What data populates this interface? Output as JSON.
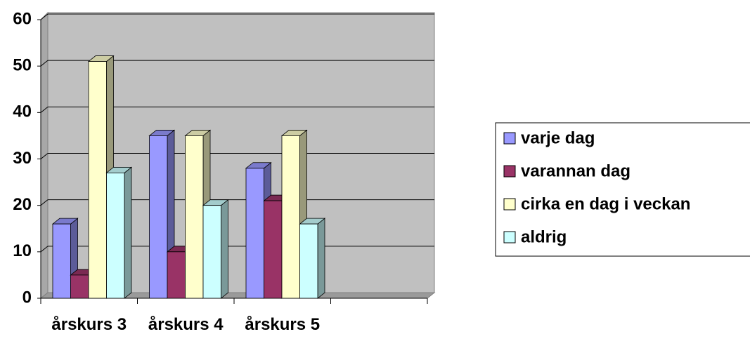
{
  "chart_data": {
    "type": "bar3d",
    "categories": [
      "årskurs 3",
      "årskurs 4",
      "årskurs 5",
      null
    ],
    "series": [
      {
        "name": "varje dag",
        "color": "#9999ff",
        "values": [
          16,
          35,
          28,
          null
        ]
      },
      {
        "name": "varannan dag",
        "color": "#993366",
        "values": [
          5,
          10,
          21,
          null
        ]
      },
      {
        "name": "cirka en dag i veckan",
        "color": "#ffffcc",
        "values": [
          51,
          35,
          35,
          null
        ]
      },
      {
        "name": "aldrig",
        "color": "#ccffff",
        "values": [
          27,
          20,
          16,
          null
        ]
      }
    ],
    "ylim": [
      0,
      60
    ],
    "yticks": [
      0,
      10,
      20,
      30,
      40,
      50,
      60
    ],
    "grid": true,
    "legend": "right"
  }
}
